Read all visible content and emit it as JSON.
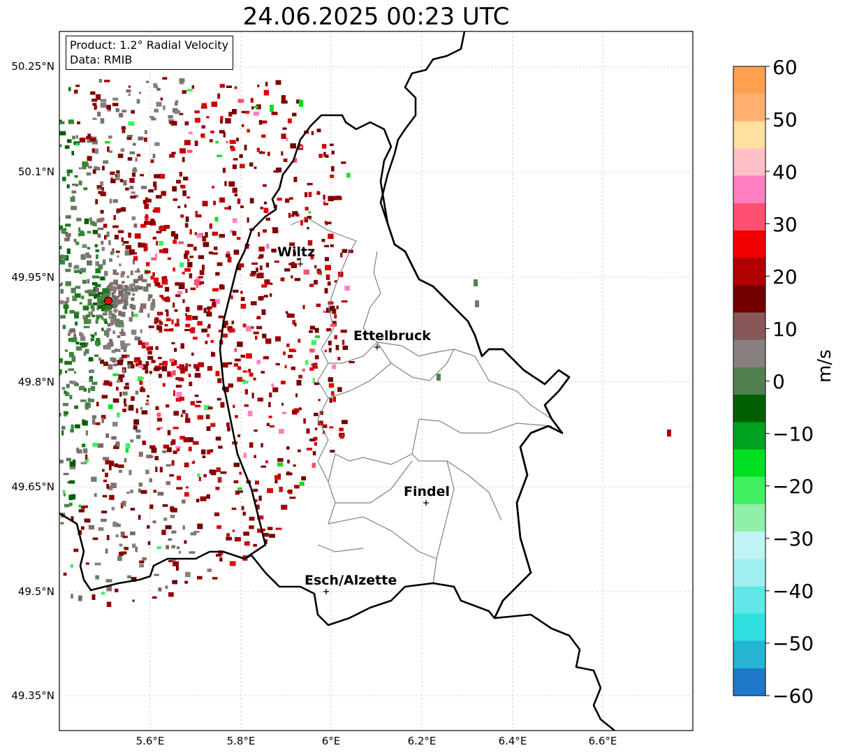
{
  "title": "24.06.2025 00:23 UTC",
  "info_box": {
    "product": "Product: 1.2° Radial Velocity",
    "data_source": "Data: RMIB"
  },
  "lat_ticks": [
    "50.25°N",
    "50.1°N",
    "49.95°N",
    "49.8°N",
    "49.65°N",
    "49.5°N",
    "49.35°N"
  ],
  "lon_ticks": [
    "5.6°E",
    "5.8°E",
    "6°E",
    "6.2°E",
    "6.4°E",
    "6.6°E"
  ],
  "cities": [
    {
      "name": "Wiltz"
    },
    {
      "name": "Ettelbruck"
    },
    {
      "name": "Findel"
    },
    {
      "name": "Esch/Alzette"
    }
  ],
  "colorbar": {
    "label": "m/s",
    "ticks": [
      "60",
      "50",
      "40",
      "30",
      "20",
      "10",
      "0",
      "−10",
      "−20",
      "−30",
      "−40",
      "−50",
      "−60"
    ],
    "range": [
      -60,
      60
    ],
    "colors": [
      "#1f78c8",
      "#25b4d2",
      "#30e0e0",
      "#60e8e8",
      "#a0f0f0",
      "#c0f4f4",
      "#90f0a8",
      "#40f060",
      "#00e020",
      "#00a020",
      "#006000",
      "#508050",
      "#888080",
      "#885858",
      "#700000",
      "#b00000",
      "#f00000",
      "#ff5070",
      "#ff80c0",
      "#ffc0c8",
      "#ffe0a0",
      "#ffb070",
      "#ffa050"
    ]
  },
  "colors": {
    "border": "#000000",
    "canton": "#808080",
    "grid": "#b4b4b4",
    "radar_site": "#ff0000"
  }
}
